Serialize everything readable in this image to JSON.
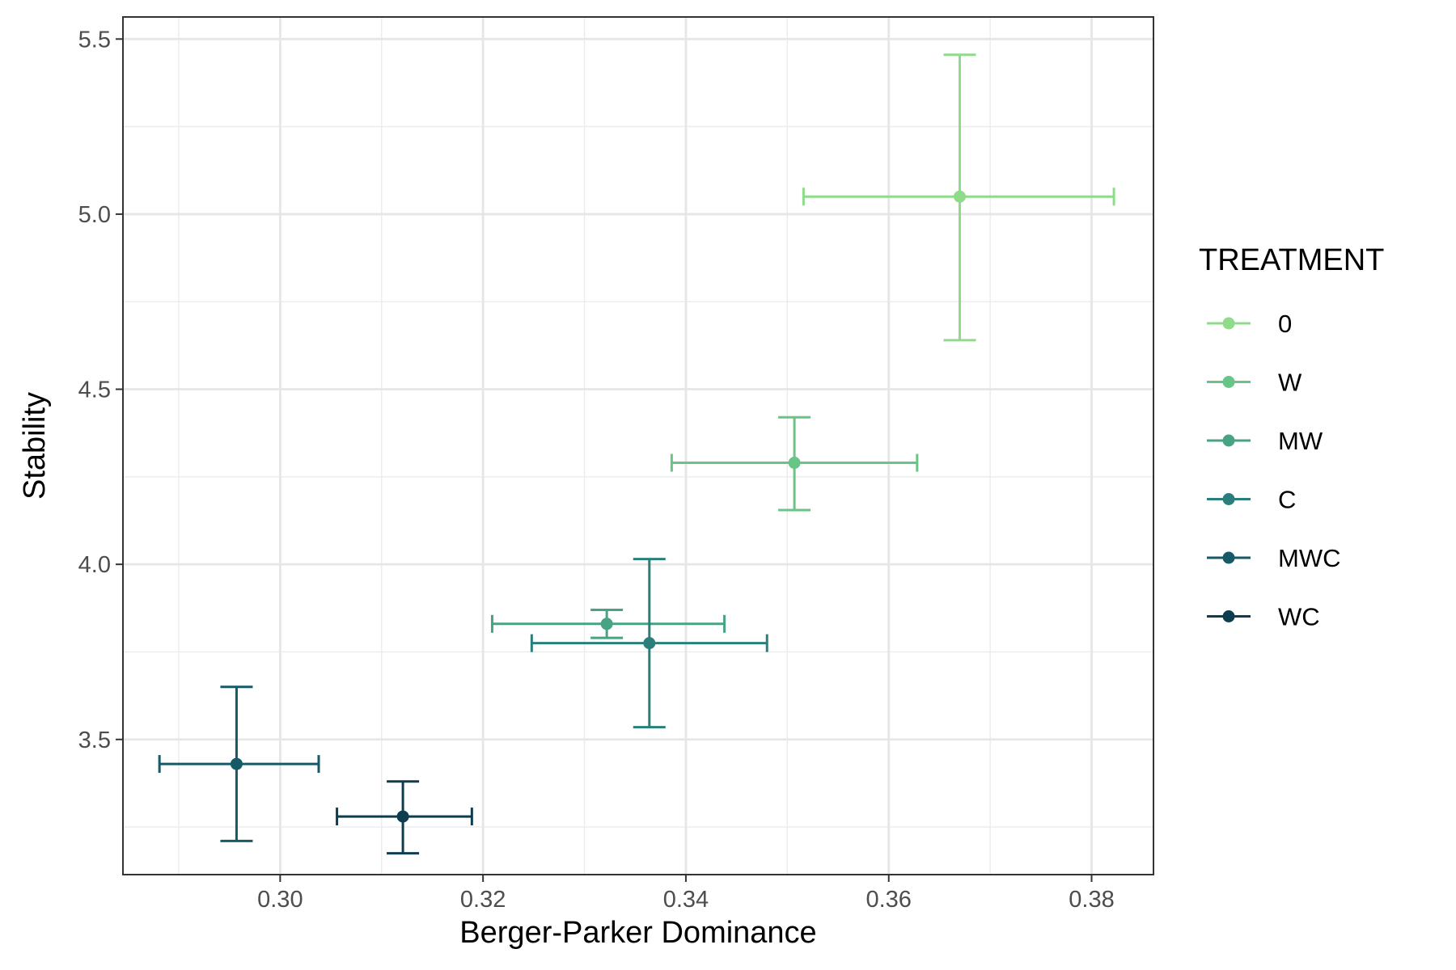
{
  "chart_data": {
    "type": "scatter",
    "title": "",
    "xlabel": "Berger-Parker Dominance",
    "ylabel": "Stability",
    "xlim": [
      0.2845,
      0.3861
    ],
    "ylim": [
      3.114,
      5.563
    ],
    "x_ticks": [
      0.3,
      0.32,
      0.34,
      0.36,
      0.38
    ],
    "x_tick_labels": [
      "0.30",
      "0.32",
      "0.34",
      "0.36",
      "0.38"
    ],
    "y_ticks": [
      3.5,
      4.0,
      4.5,
      5.0,
      5.5
    ],
    "y_tick_labels": [
      "3.5",
      "4.0",
      "4.5",
      "5.0",
      "5.5"
    ],
    "grid": true,
    "legend": {
      "title": "TREATMENT",
      "placement": "right"
    },
    "series": [
      {
        "name": "0",
        "color": "#8fdb8a",
        "x": 0.367,
        "y": 5.05,
        "x_err": [
          0.3516,
          0.3822
        ],
        "y_err": [
          4.64,
          5.455
        ]
      },
      {
        "name": "W",
        "color": "#69c585",
        "x": 0.3507,
        "y": 4.29,
        "x_err": [
          0.3386,
          0.3628
        ],
        "y_err": [
          4.155,
          4.42
        ]
      },
      {
        "name": "MW",
        "color": "#48a383",
        "x": 0.3322,
        "y": 3.83,
        "x_err": [
          0.3209,
          0.3438
        ],
        "y_err": [
          3.79,
          3.87
        ]
      },
      {
        "name": "C",
        "color": "#2a7f7c",
        "x": 0.3364,
        "y": 3.775,
        "x_err": [
          0.3248,
          0.348
        ],
        "y_err": [
          3.535,
          4.015
        ]
      },
      {
        "name": "MWC",
        "color": "#175a67",
        "x": 0.2957,
        "y": 3.43,
        "x_err": [
          0.2881,
          0.3038
        ],
        "y_err": [
          3.21,
          3.65
        ]
      },
      {
        "name": "WC",
        "color": "#0e3d50",
        "x": 0.3121,
        "y": 3.28,
        "x_err": [
          0.3056,
          0.3189
        ],
        "y_err": [
          3.175,
          3.38
        ]
      }
    ]
  }
}
